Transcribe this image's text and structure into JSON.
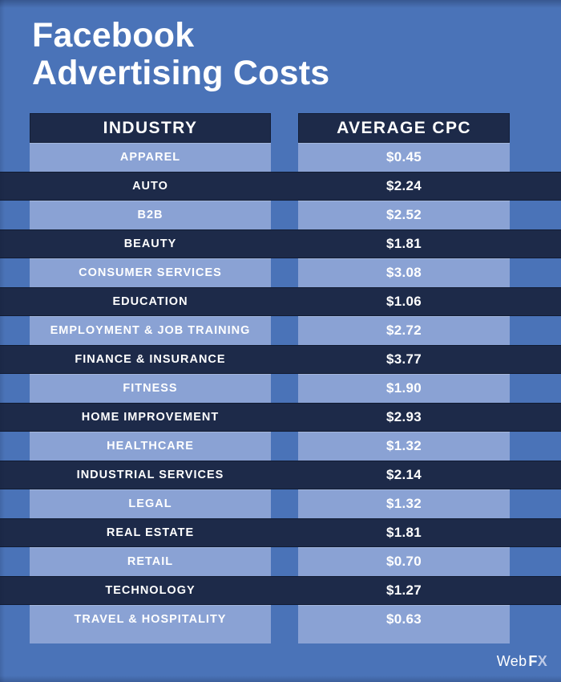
{
  "title": {
    "line1": "Facebook",
    "line2": "Advertising Costs"
  },
  "table": {
    "headers": [
      "INDUSTRY",
      "AVERAGE CPC"
    ],
    "rows": [
      {
        "industry": "APPAREL",
        "cpc": "$0.45"
      },
      {
        "industry": "AUTO",
        "cpc": "$2.24"
      },
      {
        "industry": "B2B",
        "cpc": "$2.52"
      },
      {
        "industry": "BEAUTY",
        "cpc": "$1.81"
      },
      {
        "industry": "CONSUMER SERVICES",
        "cpc": "$3.08"
      },
      {
        "industry": "EDUCATION",
        "cpc": "$1.06"
      },
      {
        "industry": "EMPLOYMENT & JOB TRAINING",
        "cpc": "$2.72"
      },
      {
        "industry": "FINANCE & INSURANCE",
        "cpc": "$3.77"
      },
      {
        "industry": "FITNESS",
        "cpc": "$1.90"
      },
      {
        "industry": "HOME IMPROVEMENT",
        "cpc": "$2.93"
      },
      {
        "industry": "HEALTHCARE",
        "cpc": "$1.32"
      },
      {
        "industry": "INDUSTRIAL SERVICES",
        "cpc": "$2.14"
      },
      {
        "industry": "LEGAL",
        "cpc": "$1.32"
      },
      {
        "industry": "REAL ESTATE",
        "cpc": "$1.81"
      },
      {
        "industry": "RETAIL",
        "cpc": "$0.70"
      },
      {
        "industry": "TECHNOLOGY",
        "cpc": "$1.27"
      },
      {
        "industry": "TRAVEL & HOSPITALITY",
        "cpc": "$0.63"
      }
    ]
  },
  "footer": {
    "brand_web": "Web",
    "brand_f": "F",
    "brand_x": "X"
  },
  "colors": {
    "background": "#4a73b8",
    "row_light": "#8aa2d4",
    "row_dark": "#1d2a49",
    "header_bg": "#1d2a49",
    "text": "#ffffff",
    "brand_x": "#bdc9e6"
  },
  "chart_data": {
    "type": "table",
    "title": "Facebook Advertising Costs",
    "columns": [
      "INDUSTRY",
      "AVERAGE CPC"
    ],
    "categories": [
      "APPAREL",
      "AUTO",
      "B2B",
      "BEAUTY",
      "CONSUMER SERVICES",
      "EDUCATION",
      "EMPLOYMENT & JOB TRAINING",
      "FINANCE & INSURANCE",
      "FITNESS",
      "HOME IMPROVEMENT",
      "HEALTHCARE",
      "INDUSTRIAL SERVICES",
      "LEGAL",
      "REAL ESTATE",
      "RETAIL",
      "TECHNOLOGY",
      "TRAVEL & HOSPITALITY"
    ],
    "values": [
      0.45,
      2.24,
      2.52,
      1.81,
      3.08,
      1.06,
      2.72,
      3.77,
      1.9,
      2.93,
      1.32,
      2.14,
      1.32,
      1.81,
      0.7,
      1.27,
      0.63
    ],
    "value_format": "USD",
    "layout": "alternating light/dark rows, light rows inset to two columns, dark rows full-width"
  }
}
